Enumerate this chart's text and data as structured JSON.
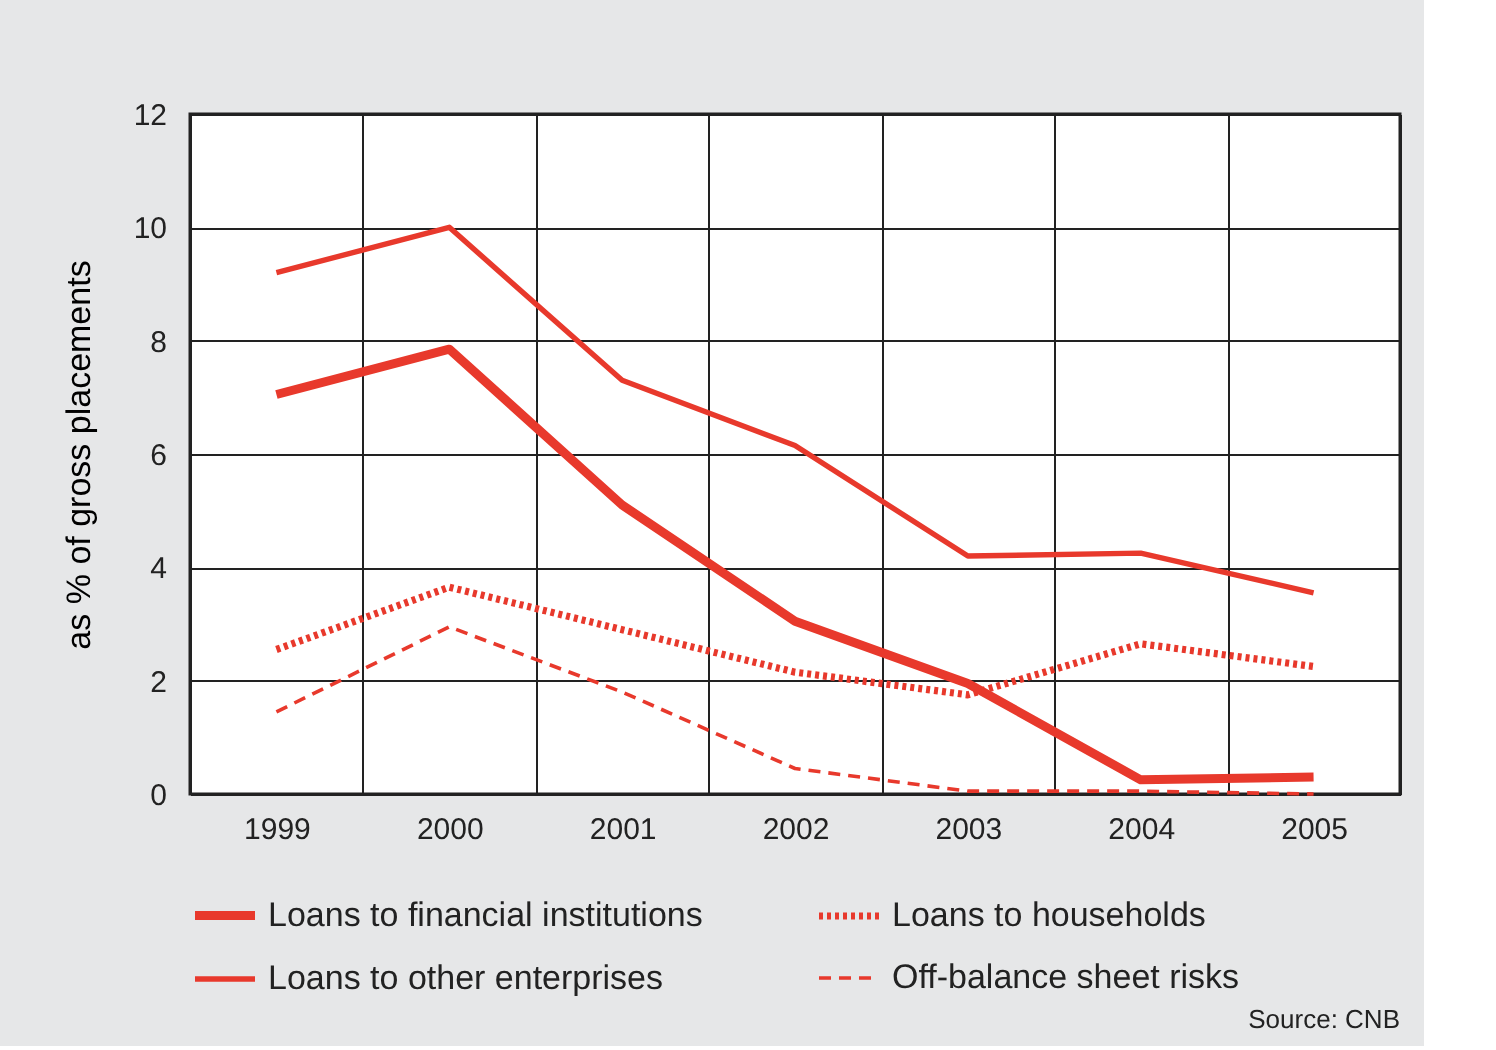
{
  "chart_data": {
    "type": "line",
    "ylabel": "as % of gross placements",
    "categories": [
      "1999",
      "2000",
      "2001",
      "2002",
      "2003",
      "2004",
      "2005"
    ],
    "series": [
      {
        "name": "Loans to financial institutions",
        "color": "#e8392c",
        "line_style": "solid",
        "values": [
          7.05,
          7.85,
          5.1,
          3.05,
          1.95,
          0.25,
          0.3
        ]
      },
      {
        "name": "Loans to other enterprises",
        "color": "#e8392c",
        "line_style": "solid",
        "values": [
          9.2,
          10.0,
          7.3,
          6.15,
          4.2,
          4.25,
          3.55
        ]
      },
      {
        "name": "Loans to households",
        "color": "#e8392c",
        "line_style": "dotted",
        "values": [
          2.55,
          3.65,
          2.9,
          2.15,
          1.75,
          2.65,
          2.25
        ]
      },
      {
        "name": "Off-balance sheet risks",
        "color": "#e8392c",
        "line_style": "dashed",
        "values": [
          1.45,
          2.95,
          1.8,
          0.45,
          0.05,
          0.05,
          0.0
        ]
      }
    ],
    "ylim": [
      0,
      12
    ],
    "yticks": [
      0,
      2,
      4,
      6,
      8,
      10,
      12
    ],
    "grid": true,
    "legend": "bottom",
    "marker": "none",
    "annotations": [
      "Source: CNB"
    ]
  }
}
